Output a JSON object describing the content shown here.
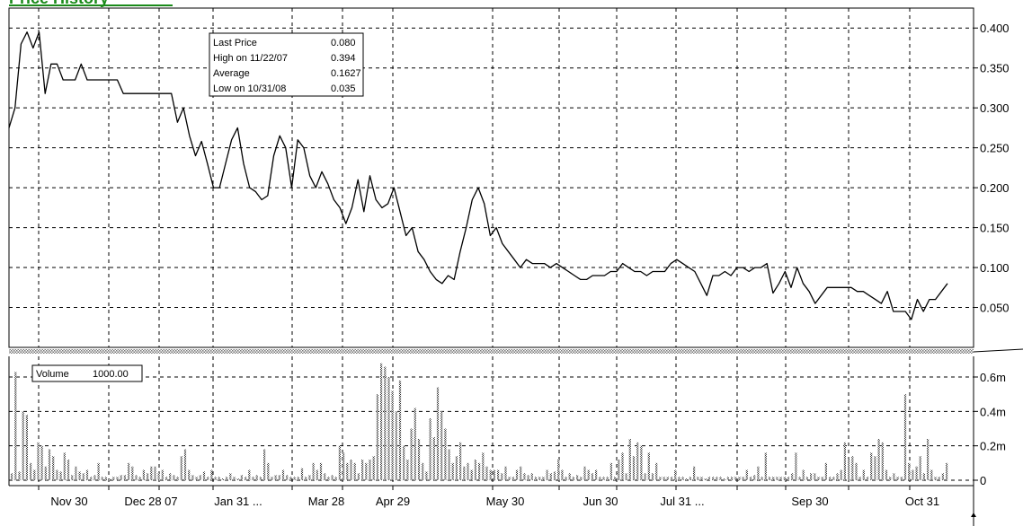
{
  "chart_data": [
    {
      "type": "line",
      "panel": "price",
      "title": "Price History",
      "xlabel": "",
      "ylabel": "",
      "x_tick_labels": [
        "Nov 30",
        "Dec 28 07",
        "Jan 31 ...",
        "Mar 28",
        "Apr 29",
        "May 30",
        "Jun 30",
        "Jul 31 ...",
        "Sep 30",
        "Oct 31"
      ],
      "y_tick_labels": [
        "0.400",
        "0.350",
        "0.300",
        "0.250",
        "0.200",
        "0.150",
        "0.100",
        "0.050"
      ],
      "ylim": [
        0.0,
        0.425
      ],
      "grid": true,
      "y_axis_side": "right",
      "info_box": {
        "rows": [
          {
            "label": "Last Price",
            "value": "0.080"
          },
          {
            "label": "High on  11/22/07",
            "value": "0.394"
          },
          {
            "label": "Average",
            "value": "0.1627"
          },
          {
            "label": "Low on  10/31/08",
            "value": "0.035"
          }
        ]
      },
      "series": [
        {
          "values": [
            0.275,
            0.3,
            0.38,
            0.395,
            0.375,
            0.395,
            0.318,
            0.355,
            0.355,
            0.335,
            0.335,
            0.335,
            0.355,
            0.335,
            0.335,
            0.335,
            0.335,
            0.335,
            0.335,
            0.318,
            0.318,
            0.318,
            0.318,
            0.318,
            0.318,
            0.318,
            0.318,
            0.318,
            0.282,
            0.3,
            0.265,
            0.24,
            0.258,
            0.23,
            0.2,
            0.2,
            0.23,
            0.26,
            0.275,
            0.23,
            0.2,
            0.195,
            0.185,
            0.19,
            0.24,
            0.265,
            0.25,
            0.2,
            0.26,
            0.25,
            0.215,
            0.2,
            0.22,
            0.205,
            0.185,
            0.175,
            0.155,
            0.175,
            0.21,
            0.17,
            0.215,
            0.185,
            0.175,
            0.18,
            0.2,
            0.17,
            0.14,
            0.15,
            0.12,
            0.11,
            0.095,
            0.085,
            0.08,
            0.09,
            0.085,
            0.12,
            0.15,
            0.185,
            0.2,
            0.18,
            0.14,
            0.15,
            0.13,
            0.12,
            0.11,
            0.1,
            0.11,
            0.105,
            0.105,
            0.105,
            0.1,
            0.105,
            0.1,
            0.095,
            0.09,
            0.085,
            0.085,
            0.09,
            0.09,
            0.09,
            0.095,
            0.095,
            0.105,
            0.1,
            0.095,
            0.095,
            0.09,
            0.095,
            0.095,
            0.095,
            0.105,
            0.11,
            0.105,
            0.1,
            0.095,
            0.08,
            0.065,
            0.09,
            0.09,
            0.095,
            0.09,
            0.1,
            0.1,
            0.095,
            0.1,
            0.1,
            0.105,
            0.068,
            0.08,
            0.095,
            0.075,
            0.1,
            0.08,
            0.07,
            0.055,
            0.065,
            0.075,
            0.075,
            0.075,
            0.075,
            0.075,
            0.07,
            0.07,
            0.065,
            0.06,
            0.055,
            0.07,
            0.045,
            0.045,
            0.045,
            0.035,
            0.06,
            0.045,
            0.06,
            0.06,
            0.07,
            0.08
          ]
        }
      ]
    },
    {
      "type": "bar",
      "panel": "volume",
      "title": "",
      "xlabel": "",
      "ylabel": "",
      "legend_box": {
        "label": "Volume",
        "value": "1000.00"
      },
      "y_tick_labels": [
        "0.6m",
        "0.4m",
        "0.2m",
        "0"
      ],
      "ylim": [
        0.0,
        0.72
      ],
      "units": "millions",
      "grid": true,
      "series": [
        {
          "values": [
            0.04,
            0.63,
            0.05,
            0.4,
            0.38,
            0.1,
            0.06,
            0.22,
            0.2,
            0.08,
            0.18,
            0.14,
            0.06,
            0.05,
            0.16,
            0.12,
            0.03,
            0.08,
            0.05,
            0.04,
            0.06,
            0.02,
            0.03,
            0.1,
            0.02,
            0.02,
            0.01,
            0.02,
            0.02,
            0.03,
            0.03,
            0.1,
            0.08,
            0.03,
            0.02,
            0.06,
            0.04,
            0.08,
            0.08,
            0.04,
            0.06,
            0.02,
            0.04,
            0.03,
            0.02,
            0.14,
            0.18,
            0.06,
            0.03,
            0.02,
            0.03,
            0.05,
            0.02,
            0.06,
            0.02,
            0.02,
            0.01,
            0.02,
            0.04,
            0.02,
            0.01,
            0.03,
            0.02,
            0.06,
            0.02,
            0.03,
            0.02,
            0.18,
            0.1,
            0.02,
            0.03,
            0.03,
            0.06,
            0.03,
            0.02,
            0.02,
            0.02,
            0.07,
            0.02,
            0.03,
            0.1,
            0.06,
            0.1,
            0.04,
            0.02,
            0.03,
            0.02,
            0.2,
            0.16,
            0.1,
            0.12,
            0.1,
            0.04,
            0.12,
            0.1,
            0.12,
            0.14,
            0.5,
            0.68,
            0.66,
            0.6,
            0.52,
            0.4,
            0.58,
            0.2,
            0.12,
            0.3,
            0.42,
            0.24,
            0.1,
            0.05,
            0.36,
            0.25,
            0.54,
            0.4,
            0.3,
            0.18,
            0.1,
            0.14,
            0.22,
            0.08,
            0.1,
            0.06,
            0.12,
            0.1,
            0.16,
            0.08,
            0.06,
            0.06,
            0.06,
            0.04,
            0.08,
            0.02,
            0.02,
            0.06,
            0.08,
            0.04,
            0.03,
            0.04,
            0.02,
            0.02,
            0.02,
            0.06,
            0.04,
            0.05,
            0.12,
            0.06,
            0.02,
            0.04,
            0.02,
            0.03,
            0.02,
            0.08,
            0.06,
            0.04,
            0.06,
            0.02,
            0.02,
            0.02,
            0.1,
            0.02,
            0.12,
            0.16,
            0.04,
            0.24,
            0.14,
            0.22,
            0.2,
            0.04,
            0.16,
            0.04,
            0.1,
            0.02,
            0.02,
            0.02,
            0.02,
            0.06,
            0.02,
            0.02,
            0.01,
            0.02,
            0.08,
            0.02,
            0.02,
            0.01,
            0.02,
            0.02,
            0.02,
            0.02,
            0.01,
            0.02,
            0.02,
            0.02,
            0.02,
            0.02,
            0.06,
            0.02,
            0.03,
            0.08,
            0.02,
            0.16,
            0.02,
            0.02,
            0.02,
            0.02,
            0.02,
            0.02,
            0.04,
            0.16,
            0.02,
            0.06,
            0.02,
            0.04,
            0.04,
            0.02,
            0.02,
            0.1,
            0.02,
            0.02,
            0.04,
            0.06,
            0.22,
            0.12,
            0.14,
            0.1,
            0.02,
            0.06,
            0.02,
            0.16,
            0.14,
            0.24,
            0.22,
            0.06,
            0.02,
            0.04,
            0.02,
            0.02,
            0.5,
            0.1,
            0.06,
            0.08,
            0.14,
            0.04,
            0.24,
            0.06,
            0.02,
            0.02,
            0.04,
            0.1
          ]
        }
      ]
    }
  ]
}
